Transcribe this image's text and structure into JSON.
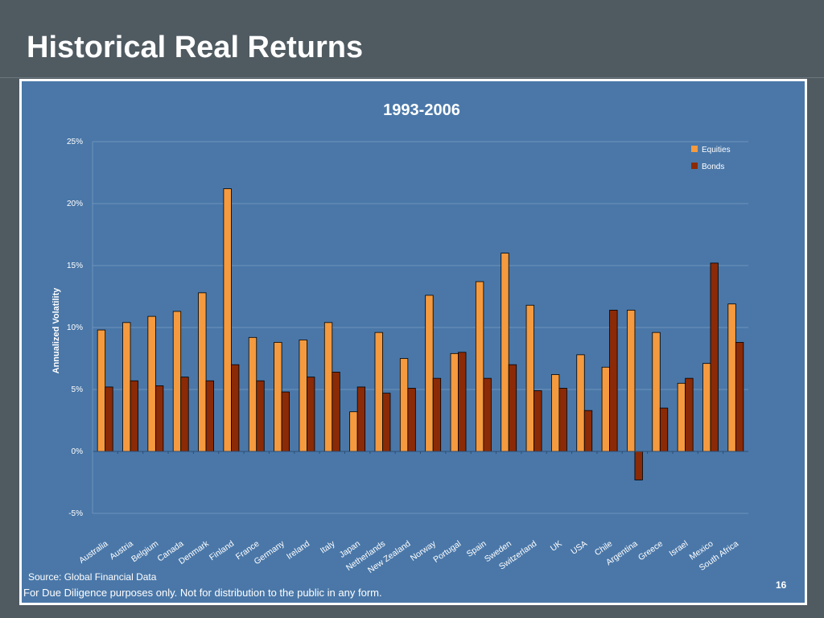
{
  "slide": {
    "title": "Historical Real Returns",
    "source": "Source: Global Financial Data",
    "disclaimer": "For Due Diligence purposes only. Not for distribution to the public in any form.",
    "page_number": "16"
  },
  "colors": {
    "background": "#4f5a61",
    "plot_background": "#4a77a8",
    "equities": "#f59a3e",
    "bonds": "#8b2a06",
    "text": "#ffffff"
  },
  "chart_data": {
    "type": "bar",
    "title": "1993-2006",
    "xlabel": "",
    "ylabel": "Annualized Volatility",
    "ylim": [
      -5,
      25
    ],
    "yticks": [
      25,
      20,
      15,
      10,
      5,
      0,
      -5
    ],
    "ytick_labels": [
      "25%",
      "20%",
      "15%",
      "10%",
      "5%",
      "0%",
      "-5%"
    ],
    "grid": true,
    "legend_position": "top-right",
    "categories": [
      "Australia",
      "Austria",
      "Belgium",
      "Canada",
      "Denmark",
      "Finland",
      "France",
      "Germany",
      "Ireland",
      "Italy",
      "Japan",
      "Netherlands",
      "New Zealand",
      "Norway",
      "Portugal",
      "Spain",
      "Sweden",
      "Switzerland",
      "UK",
      "USA",
      "Chile",
      "Argentina",
      "Greece",
      "Israel",
      "Mexico",
      "South Africa"
    ],
    "series": [
      {
        "name": "Equities",
        "values": [
          9.8,
          10.4,
          10.9,
          11.3,
          12.8,
          21.2,
          9.2,
          8.8,
          9.0,
          10.4,
          3.2,
          9.6,
          7.5,
          12.6,
          7.9,
          13.7,
          16.0,
          11.8,
          6.2,
          7.8,
          6.8,
          11.4,
          9.6,
          5.5,
          7.1,
          11.9
        ]
      },
      {
        "name": "Bonds",
        "values": [
          5.2,
          5.7,
          5.3,
          6.0,
          5.7,
          7.0,
          5.7,
          4.8,
          6.0,
          6.4,
          5.2,
          4.7,
          5.1,
          5.9,
          8.0,
          5.9,
          7.0,
          4.9,
          5.1,
          3.3,
          11.4,
          -2.3,
          3.5,
          5.9,
          15.2,
          8.8
        ]
      }
    ]
  }
}
